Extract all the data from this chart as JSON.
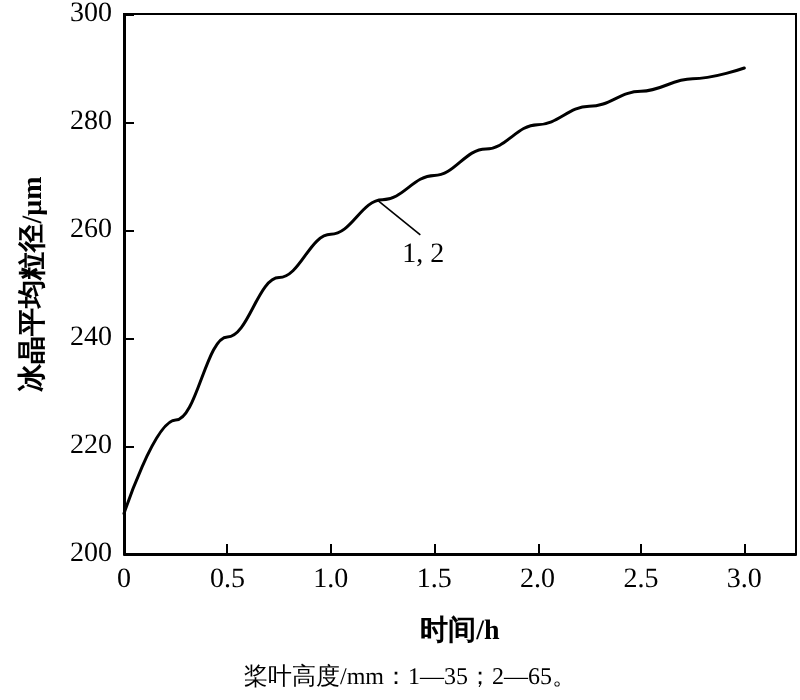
{
  "chart_data": {
    "type": "line",
    "xlabel": "时间/h",
    "ylabel": "冰晶平均粒径/μm",
    "x": [
      0,
      0.25,
      0.5,
      0.75,
      1.0,
      1.25,
      1.5,
      1.75,
      2.0,
      2.25,
      2.5,
      2.75,
      3.0
    ],
    "series": [
      {
        "color": "#000000",
        "values": [
          207.5,
          224.8,
          240.2,
          251.2,
          259.2,
          265.6,
          270.1,
          275.0,
          279.5,
          282.9,
          285.7,
          288.0,
          290.0
        ]
      }
    ],
    "xlim": [
      0,
      3.25
    ],
    "xticks": [
      {
        "value": 0,
        "label": "0"
      },
      0.5,
      {
        "value": 1,
        "label": "1.0"
      },
      1.5,
      {
        "value": 2,
        "label": "2.0"
      },
      2.5,
      {
        "value": 3,
        "label": "3.0"
      }
    ],
    "ylim": [
      200,
      300
    ],
    "yticks": [
      200,
      220,
      240,
      260,
      280,
      300
    ],
    "annotations": [
      {
        "text": "1, 2",
        "x": 1.23,
        "y": 265.4
      },
      "桨叶高度/mm：1—35；2—65。"
    ],
    "marker": "none",
    "line_style": "solid"
  }
}
